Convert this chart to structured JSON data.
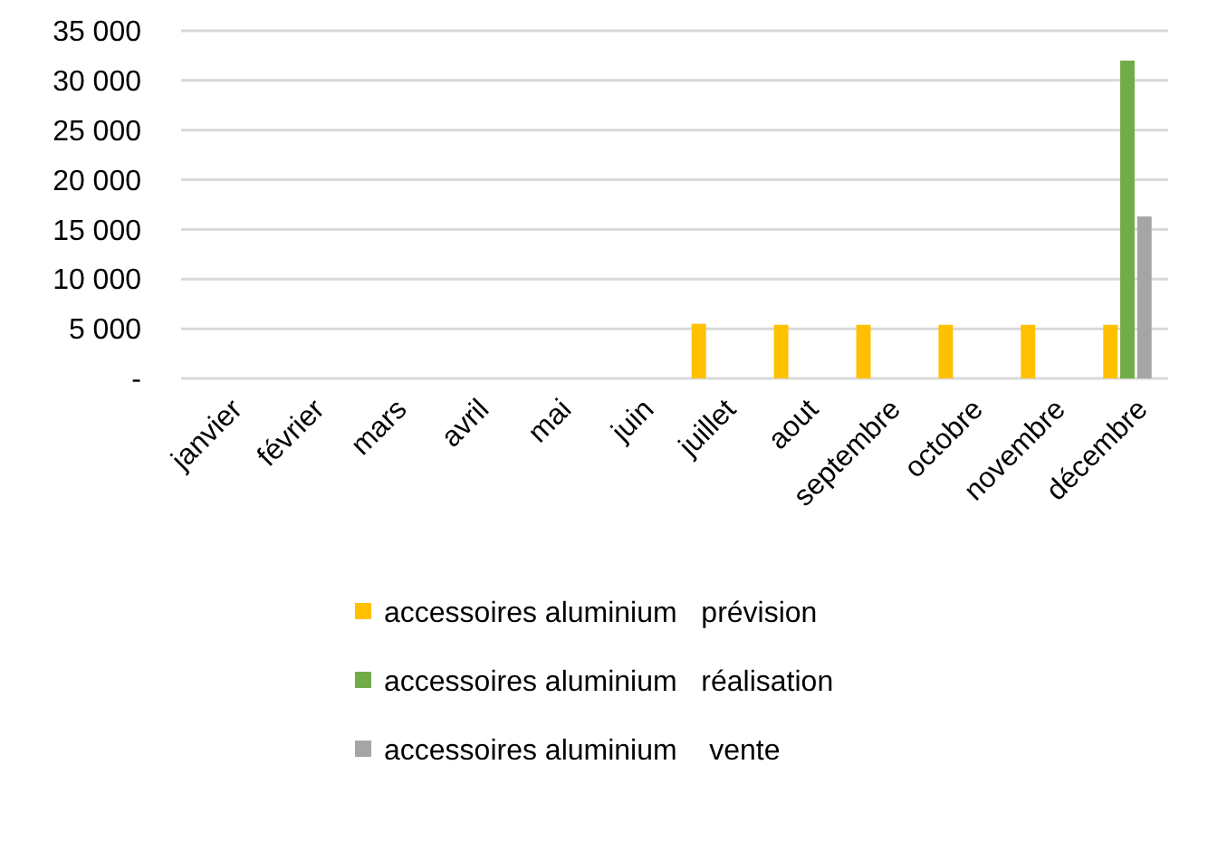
{
  "chart_data": {
    "type": "bar",
    "categories": [
      "janvier",
      "février",
      "mars",
      "avril",
      "mai",
      "juin",
      "juillet",
      "aout",
      "septembre",
      "octobre",
      "novembre",
      "décembre"
    ],
    "series": [
      {
        "name": "accessoires aluminium   prévision",
        "color": "#ffc000",
        "values": [
          null,
          null,
          null,
          null,
          null,
          null,
          5500,
          5400,
          5400,
          5400,
          5400,
          5400
        ]
      },
      {
        "name": "accessoires aluminium   réalisation",
        "color": "#70ad47",
        "values": [
          null,
          null,
          null,
          null,
          null,
          null,
          null,
          null,
          null,
          null,
          null,
          32000
        ]
      },
      {
        "name": "accessoires aluminium    vente",
        "color": "#a5a5a5",
        "values": [
          null,
          null,
          null,
          null,
          null,
          null,
          null,
          null,
          null,
          null,
          null,
          16300
        ]
      }
    ],
    "ylim": [
      0,
      35000
    ],
    "yticks": [
      {
        "value": 0,
        "label": "-"
      },
      {
        "value": 5000,
        "label": "5 000"
      },
      {
        "value": 10000,
        "label": "10 000"
      },
      {
        "value": 15000,
        "label": "15 000"
      },
      {
        "value": 20000,
        "label": "20 000"
      },
      {
        "value": 25000,
        "label": "25 000"
      },
      {
        "value": 30000,
        "label": "30 000"
      },
      {
        "value": 35000,
        "label": "35 000"
      }
    ],
    "grid": "y",
    "legend": "bottom"
  }
}
